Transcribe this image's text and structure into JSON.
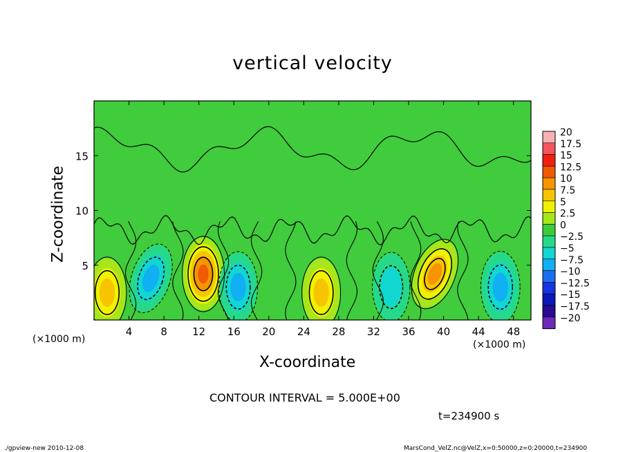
{
  "chart_data": {
    "type": "heatmap",
    "title": "vertical velocity",
    "xlabel": "X-coordinate",
    "ylabel": "Z-coordinate",
    "x_unit_left": "(×1000 m)",
    "x_unit_right": "(×1000 m)",
    "xlim": [
      0,
      50
    ],
    "ylim": [
      0,
      20
    ],
    "x_ticks": [
      "4",
      "8",
      "12",
      "16",
      "20",
      "24",
      "28",
      "32",
      "36",
      "40",
      "44",
      "48"
    ],
    "x_tick_values": [
      4,
      8,
      12,
      16,
      20,
      24,
      28,
      32,
      36,
      40,
      44,
      48
    ],
    "y_ticks": [
      "5",
      "10",
      "15"
    ],
    "y_tick_values": [
      5,
      10,
      15
    ],
    "colorbar": {
      "labels": [
        "20",
        "17.5",
        "15",
        "12.5",
        "10",
        "7.5",
        "5",
        "2.5",
        "0",
        "−2.5",
        "−5",
        "−7.5",
        "−10",
        "−12.5",
        "−15",
        "−17.5",
        "−20"
      ],
      "values": [
        20,
        17.5,
        15,
        12.5,
        10,
        7.5,
        5,
        2.5,
        0,
        -2.5,
        -5,
        -7.5,
        -10,
        -12.5,
        -15,
        -17.5,
        -20
      ],
      "colors": [
        "#f9b0b5",
        "#f2555e",
        "#f02010",
        "#f05a00",
        "#f59500",
        "#f7c400",
        "#eef200",
        "#a6e61a",
        "#3ccc3c",
        "#26d98a",
        "#12d6d0",
        "#10b0f2",
        "#1a6ef2",
        "#1535e0",
        "#0d18b8",
        "#2a0a90",
        "#6b2ab8"
      ]
    },
    "features": [
      {
        "kind": "updraft",
        "x": 1.5,
        "z": 2.5,
        "peak": 8
      },
      {
        "kind": "downdraft",
        "x": 6.5,
        "z": 3.8,
        "peak": -8
      },
      {
        "kind": "updraft",
        "x": 12.5,
        "z": 4.2,
        "peak": 14
      },
      {
        "kind": "downdraft",
        "x": 16.5,
        "z": 3.0,
        "peak": -8
      },
      {
        "kind": "updraft",
        "x": 26.0,
        "z": 2.5,
        "peak": 8
      },
      {
        "kind": "downdraft",
        "x": 34.0,
        "z": 3.0,
        "peak": -6
      },
      {
        "kind": "updraft",
        "x": 39.0,
        "z": 4.2,
        "peak": 11
      },
      {
        "kind": "downdraft",
        "x": 46.5,
        "z": 3.0,
        "peak": -9
      }
    ],
    "contour_interval": "CONTOUR INTERVAL = 5.000E+00",
    "time": "t=234900 s",
    "footer_left": "./gpview-new   2010-12-08",
    "footer_right": "MarsCond_VelZ.nc@VelZ,x=0:50000,z=0:20000,t=234900",
    "colors": {
      "background": "#ffffff",
      "field_base": "#40cc3c"
    }
  }
}
